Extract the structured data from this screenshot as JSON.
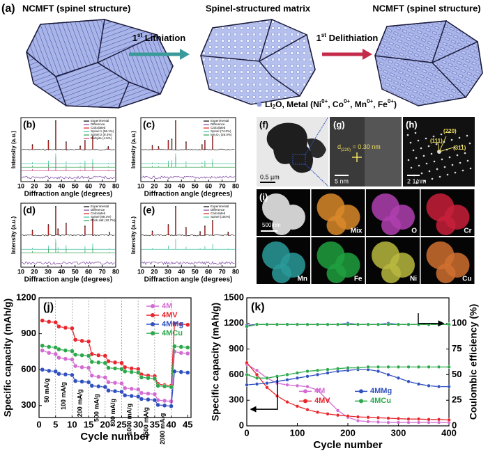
{
  "schematic": {
    "label": "(a)",
    "left_title": "NCMFT (spinel structure)",
    "middle_title": "Spinel-structured matrix",
    "right_title": "NCMFT (spinel structure)",
    "step1": {
      "num": "1",
      "sup": "st",
      "text": " Lithiation"
    },
    "step2": {
      "num": "1",
      "sup": "st",
      "text": " Delithiation"
    },
    "legend": [
      {
        "text": "Li",
        "pos": "base"
      },
      {
        "text": "2",
        "pos": "sub"
      },
      {
        "text": "O, Metal (Ni",
        "pos": "base"
      },
      {
        "text": "0+",
        "pos": "sup"
      },
      {
        "text": ", Co",
        "pos": "base"
      },
      {
        "text": "0+",
        "pos": "sup"
      },
      {
        "text": ", Mn",
        "pos": "base"
      },
      {
        "text": "0+",
        "pos": "sup"
      },
      {
        "text": ", Fe",
        "pos": "base"
      },
      {
        "text": "0+",
        "pos": "sup"
      },
      {
        "text": ")",
        "pos": "base"
      }
    ]
  },
  "tem": {
    "f": {
      "label": "(f)",
      "scale": "0.5 µm"
    },
    "g": {
      "label": "(g)",
      "scale": "5 nm",
      "d_main": "d",
      "d_sub": "(220)",
      "d_text": " = 0.30 nm"
    },
    "h": {
      "label": "(h)",
      "scale": "2 1/nm",
      "planes": [
        "(111)",
        "(220)",
        "(311)"
      ]
    },
    "i": {
      "label": "(i)",
      "scale": "500 nm",
      "elements": [
        "Mix",
        "O",
        "Cr",
        "Mn",
        "Fe",
        "Ni",
        "Cu"
      ],
      "colors": [
        "#d98a2a",
        "#b040b0",
        "#c8203a",
        "#2a9a9a",
        "#20a040",
        "#b8b840",
        "#d07030"
      ]
    }
  },
  "chart_data": [
    {
      "type": "xrd",
      "label": "(b)",
      "xlabel": "Diffraction angle (degrees)",
      "ylabel": "Intensity (a.u.)",
      "xlim": [
        10,
        80
      ],
      "xticks": [
        10,
        20,
        30,
        40,
        50,
        60,
        70,
        80
      ],
      "legend": [
        {
          "name": "Experimental",
          "color": "#000000"
        },
        {
          "name": "Difference",
          "color": "#7b3fa0"
        },
        {
          "name": "Calculated",
          "color": "#e02020"
        },
        {
          "name": "Spinel 1 (86.1%)",
          "color": "#40c0a0"
        },
        {
          "name": "Spinel 2 (9.4%)",
          "color": "#30a050"
        },
        {
          "name": "Bixbyite (4.5%)",
          "color": "#c04080"
        }
      ],
      "peaks": [
        18.5,
        30.3,
        35.7,
        43.4,
        53.8,
        57.3,
        63.0,
        74.5
      ],
      "intensities": [
        0.15,
        0.3,
        1.0,
        0.25,
        0.1,
        0.3,
        0.45,
        0.08
      ]
    },
    {
      "type": "xrd",
      "label": "(c)",
      "xlabel": "Diffraction angle (degrees)",
      "ylabel": "Intensity (a.u.)",
      "xlim": [
        10,
        80
      ],
      "xticks": [
        10,
        20,
        30,
        40,
        50,
        60,
        70,
        80
      ],
      "legend": [
        {
          "name": "Experimental",
          "color": "#000000"
        },
        {
          "name": "Difference",
          "color": "#7b3fa0"
        },
        {
          "name": "Calculated",
          "color": "#e02020"
        },
        {
          "name": "Spinel (74.0%)",
          "color": "#40c0a0"
        },
        {
          "name": "Mn₂O₃ (26.0%)",
          "color": "#30a050"
        }
      ],
      "peaks": [
        18.5,
        23.1,
        30.3,
        32.9,
        35.7,
        43.4,
        55.2,
        57.3,
        63.0
      ],
      "intensities": [
        0.12,
        0.08,
        0.3,
        0.35,
        1.0,
        0.25,
        0.15,
        0.3,
        0.45
      ]
    },
    {
      "type": "xrd",
      "label": "(d)",
      "xlabel": "Diffraction angle (degrees)",
      "ylabel": "Intensity (a.u.)",
      "xlim": [
        10,
        80
      ],
      "xticks": [
        10,
        20,
        30,
        40,
        50,
        60,
        70,
        80
      ],
      "legend": [
        {
          "name": "Experimental",
          "color": "#000000"
        },
        {
          "name": "Difference",
          "color": "#7b3fa0"
        },
        {
          "name": "Calculated",
          "color": "#e02020"
        },
        {
          "name": "Spinel (89.3%)",
          "color": "#40c0a0"
        },
        {
          "name": "Rock salt (10.7%)",
          "color": "#30a050"
        }
      ],
      "peaks": [
        18.5,
        30.3,
        35.7,
        37.4,
        43.4,
        57.3,
        63.0,
        75.4
      ],
      "intensities": [
        0.15,
        0.35,
        1.0,
        0.2,
        0.4,
        0.3,
        0.55,
        0.08
      ]
    },
    {
      "type": "xrd",
      "label": "(e)",
      "xlabel": "Diffraction angle (degrees)",
      "ylabel": "Intensity (a.u.)",
      "xlim": [
        10,
        80
      ],
      "xticks": [
        10,
        20,
        30,
        40,
        50,
        60,
        70,
        80
      ],
      "legend": [
        {
          "name": "Experimental",
          "color": "#000000"
        },
        {
          "name": "Difference",
          "color": "#7b3fa0"
        },
        {
          "name": "Calculated",
          "color": "#e02020"
        },
        {
          "name": "Spinel (100%)",
          "color": "#40c0a0"
        }
      ],
      "peaks": [
        18.5,
        30.3,
        35.7,
        43.4,
        53.8,
        57.3,
        63.0,
        74.5
      ],
      "intensities": [
        0.12,
        0.35,
        1.0,
        0.25,
        0.1,
        0.3,
        0.5,
        0.08
      ]
    },
    {
      "type": "line",
      "label": "(j)",
      "xlabel": "Cycle number",
      "ylabel": "Specific capacity (mAh/g)",
      "x": [
        1,
        3,
        5,
        6,
        8,
        10,
        11,
        13,
        15,
        16,
        18,
        20,
        21,
        23,
        25,
        26,
        28,
        30,
        31,
        33,
        35,
        36,
        38,
        40,
        41,
        43,
        45
      ],
      "xlim": [
        0,
        46
      ],
      "xticks": [
        0,
        5,
        10,
        15,
        20,
        25,
        30,
        35,
        40,
        45
      ],
      "ylim": [
        200,
        1200
      ],
      "yticks": [
        300,
        600,
        900,
        1200
      ],
      "dividers": true,
      "legend": "upper-right",
      "rates": [
        "50 mA/g",
        "100 mA/g",
        "200 mA/g",
        "500 mA/g",
        "800 mA/g",
        "1000 mA/g",
        "1500 mA/g",
        "2000 mA/g"
      ],
      "series": [
        {
          "name": "4M",
          "color": "#d36bd3",
          "values": [
            760,
            740,
            730,
            700,
            690,
            685,
            630,
            620,
            615,
            550,
            540,
            535,
            495,
            490,
            485,
            445,
            440,
            435,
            405,
            400,
            395,
            345,
            340,
            335,
            750,
            740,
            735
          ]
        },
        {
          "name": "4MV",
          "color": "#e8262d",
          "values": [
            1010,
            1000,
            995,
            960,
            950,
            945,
            850,
            840,
            835,
            730,
            720,
            715,
            670,
            660,
            655,
            620,
            610,
            605,
            560,
            550,
            545,
            480,
            470,
            465,
            985,
            980,
            975
          ]
        },
        {
          "name": "4MMg",
          "color": "#3050c0",
          "values": [
            600,
            590,
            585,
            565,
            560,
            555,
            505,
            500,
            495,
            465,
            460,
            455,
            425,
            420,
            415,
            385,
            380,
            375,
            355,
            350,
            345,
            305,
            300,
            295,
            585,
            580,
            575
          ]
        },
        {
          "name": "4MCu",
          "color": "#2aa84a",
          "values": [
            800,
            790,
            785,
            770,
            760,
            755,
            725,
            720,
            715,
            665,
            660,
            655,
            615,
            610,
            605,
            585,
            580,
            575,
            535,
            530,
            525,
            465,
            460,
            455,
            795,
            790,
            785
          ]
        }
      ]
    },
    {
      "type": "line-dual",
      "label": "(k)",
      "xlabel": "Cycle number",
      "ylabel": "Specific capacity (mAh/g)",
      "y2label": "Coulombic efficiency (%)",
      "x": [
        0,
        20,
        40,
        60,
        80,
        100,
        120,
        140,
        160,
        180,
        200,
        220,
        240,
        260,
        280,
        300,
        320,
        340,
        360,
        380,
        400
      ],
      "xlim": [
        0,
        400
      ],
      "xticks": [
        0,
        100,
        200,
        300,
        400
      ],
      "ylim": [
        0,
        1500
      ],
      "yticks": [
        0,
        300,
        600,
        900,
        1200,
        1500
      ],
      "y2lim": [
        0,
        125
      ],
      "y2ticks": [
        0,
        25,
        50,
        75,
        100
      ],
      "legend": "lower-center",
      "series": [
        {
          "name": "4M",
          "color": "#d36bd3",
          "values": [
            720,
            650,
            560,
            500,
            480,
            470,
            460,
            420,
            300,
            180,
            100,
            60,
            50,
            45,
            40,
            40,
            40,
            40,
            40,
            40,
            40
          ]
        },
        {
          "name": "4MV",
          "color": "#e8262d",
          "values": [
            740,
            600,
            450,
            350,
            280,
            230,
            190,
            160,
            140,
            125,
            115,
            105,
            100,
            95,
            90,
            85,
            80,
            80,
            75,
            75,
            70
          ]
        },
        {
          "name": "4MMg",
          "color": "#3050c0",
          "values": [
            480,
            490,
            500,
            520,
            540,
            560,
            580,
            600,
            620,
            640,
            650,
            660,
            660,
            640,
            600,
            560,
            520,
            490,
            470,
            460,
            460
          ]
        },
        {
          "name": "4MCu",
          "color": "#2aa84a",
          "values": [
            600,
            560,
            560,
            580,
            600,
            620,
            640,
            650,
            660,
            670,
            680,
            680,
            690,
            690,
            690,
            690,
            690,
            690,
            690,
            690,
            690
          ]
        },
        {
          "axis": "y2",
          "color": "#d36bd3",
          "values": [
            97,
            99,
            99,
            99,
            99,
            99,
            99,
            99,
            99,
            99,
            99,
            99,
            99,
            99,
            99,
            99,
            99,
            99,
            99,
            99,
            99
          ]
        },
        {
          "axis": "y2",
          "color": "#e8262d",
          "values": [
            98,
            99,
            99,
            99,
            99,
            99,
            99,
            99,
            99,
            99,
            99,
            99,
            99,
            99,
            99,
            99,
            99,
            99,
            99,
            99,
            99
          ]
        },
        {
          "axis": "y2",
          "color": "#3050c0",
          "values": [
            98,
            99,
            99,
            99,
            99,
            99,
            99,
            99,
            99,
            99,
            100,
            99,
            99,
            99,
            100,
            99,
            99,
            99,
            99,
            99,
            99
          ]
        },
        {
          "axis": "y2",
          "color": "#2aa84a",
          "values": [
            97,
            99,
            99,
            99,
            99,
            99,
            99,
            99,
            99,
            99,
            99,
            99,
            99,
            99,
            99,
            99,
            99,
            99,
            99,
            99,
            99
          ]
        }
      ]
    }
  ]
}
